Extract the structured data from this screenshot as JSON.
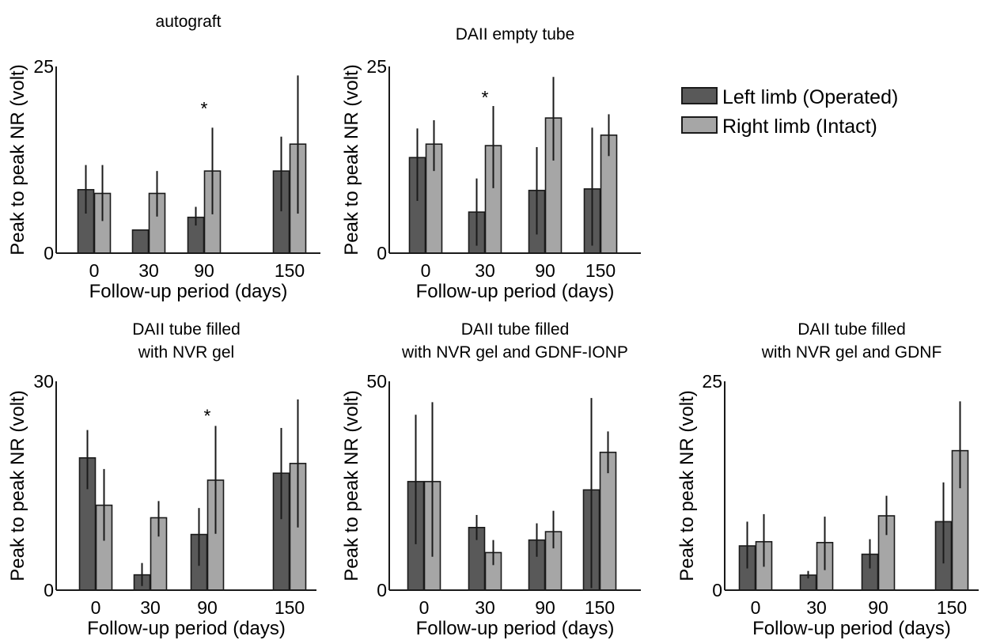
{
  "colors": {
    "operated": "#595959",
    "intact": "#a6a6a6",
    "stroke": "#1a1a1a"
  },
  "legend": {
    "placement": "top-right",
    "entries": [
      {
        "label": "Left limb (Operated)",
        "color": "#595959"
      },
      {
        "label": "Right limb (Intact)",
        "color": "#a6a6a6"
      }
    ]
  },
  "chart_data": [
    {
      "type": "bar",
      "title": [
        "autograft"
      ],
      "xlabel": "Follow-up period (days)",
      "ylabel": "Peak to peak NR (volt)",
      "categories": [
        "0",
        "30",
        "90",
        "150"
      ],
      "ylim": [
        0,
        25
      ],
      "yticks": [
        "0",
        "25"
      ],
      "grid": false,
      "series": [
        {
          "name": "Left limb (Operated)",
          "values": [
            8.5,
            3.1,
            4.8,
            11.0
          ],
          "err_low": [
            5.3,
            3.1,
            3.7,
            5.6
          ],
          "err_high": [
            11.8,
            3.1,
            6.2,
            15.6
          ]
        },
        {
          "name": "Right limb (Intact)",
          "values": [
            8.0,
            8.0,
            11.0,
            14.6
          ],
          "err_low": [
            4.3,
            4.9,
            5.2,
            5.3
          ],
          "err_high": [
            11.8,
            11.0,
            16.8,
            23.8
          ]
        }
      ],
      "annotations": [
        {
          "text": "*",
          "category": "90",
          "value": 19.8
        }
      ]
    },
    {
      "type": "bar",
      "title": [
        "DAII empty tube"
      ],
      "xlabel": "Follow-up period (days)",
      "ylabel": "Peak to peak NR (volt)",
      "categories": [
        "0",
        "30",
        "90",
        "150"
      ],
      "ylim": [
        0,
        25
      ],
      "yticks": [
        "0",
        "25"
      ],
      "grid": false,
      "series": [
        {
          "name": "Left limb (Operated)",
          "values": [
            12.8,
            5.5,
            8.4,
            8.6
          ],
          "err_low": [
            7.0,
            1.0,
            2.5,
            1.0
          ],
          "err_high": [
            16.7,
            10.0,
            14.2,
            16.8
          ]
        },
        {
          "name": "Right limb (Intact)",
          "values": [
            14.6,
            14.4,
            18.1,
            15.8
          ],
          "err_low": [
            11.0,
            8.7,
            12.4,
            13.0
          ],
          "err_high": [
            17.8,
            19.7,
            23.6,
            18.6
          ]
        }
      ],
      "annotations": [
        {
          "text": "*",
          "category": "30",
          "value": 21.3
        }
      ]
    },
    {
      "type": "bar",
      "title": [
        "DAII tube filled",
        "with NVR gel"
      ],
      "xlabel": "Follow-up period (days)",
      "ylabel": "Peak to peak NR (volt)",
      "categories": [
        "0",
        "30",
        "90",
        "150"
      ],
      "ylim": [
        0,
        30
      ],
      "yticks": [
        "0",
        "30"
      ],
      "grid": false,
      "series": [
        {
          "name": "Left limb (Operated)",
          "values": [
            19.0,
            2.2,
            8.0,
            16.8
          ],
          "err_low": [
            14.5,
            0.6,
            3.5,
            10.2
          ],
          "err_high": [
            23.0,
            3.9,
            11.8,
            23.3
          ]
        },
        {
          "name": "Right limb (Intact)",
          "values": [
            12.2,
            10.4,
            15.8,
            18.2
          ],
          "err_low": [
            7.1,
            7.7,
            8.1,
            9.0
          ],
          "err_high": [
            17.4,
            12.8,
            23.6,
            27.4
          ]
        }
      ],
      "annotations": [
        {
          "text": "*",
          "category": "90",
          "value": 25.5
        }
      ]
    },
    {
      "type": "bar",
      "title": [
        "DAII tube filled",
        "with NVR gel and  GDNF-IONP"
      ],
      "xlabel": "Follow-up period (days)",
      "ylabel": "Peak to peak NR (volt)",
      "categories": [
        "0",
        "30",
        "90",
        "150"
      ],
      "ylim": [
        0,
        50
      ],
      "yticks": [
        "0",
        "50"
      ],
      "grid": false,
      "series": [
        {
          "name": "Left limb (Operated)",
          "values": [
            26.0,
            15.0,
            12.0,
            24.0
          ],
          "err_low": [
            11.0,
            12.0,
            8.0,
            0.5
          ],
          "err_high": [
            42.0,
            18.0,
            16.0,
            46.0
          ]
        },
        {
          "name": "Right limb (Intact)",
          "values": [
            26.0,
            9.0,
            14.0,
            33.0
          ],
          "err_low": [
            8.0,
            6.0,
            10.0,
            28.0
          ],
          "err_high": [
            45.0,
            12.0,
            19.0,
            38.0
          ]
        }
      ],
      "annotations": []
    },
    {
      "type": "bar",
      "title": [
        "DAII tube filled",
        "with NVR gel and  GDNF"
      ],
      "xlabel": "Follow-up period (days)",
      "ylabel": "Peak to peak NR (volt)",
      "categories": [
        "0",
        "30",
        "90",
        "150"
      ],
      "ylim": [
        0,
        25
      ],
      "yticks": [
        "0",
        "25"
      ],
      "grid": false,
      "series": [
        {
          "name": "Left limb (Operated)",
          "values": [
            5.3,
            1.8,
            4.3,
            8.2
          ],
          "err_low": [
            2.6,
            1.4,
            2.6,
            3.2
          ],
          "err_high": [
            8.2,
            2.3,
            6.1,
            12.9
          ]
        },
        {
          "name": "Right limb (Intact)",
          "values": [
            5.8,
            5.7,
            8.9,
            16.7
          ],
          "err_low": [
            2.8,
            2.4,
            6.6,
            12.2
          ],
          "err_high": [
            9.1,
            8.8,
            11.3,
            22.6
          ]
        }
      ],
      "annotations": []
    }
  ]
}
